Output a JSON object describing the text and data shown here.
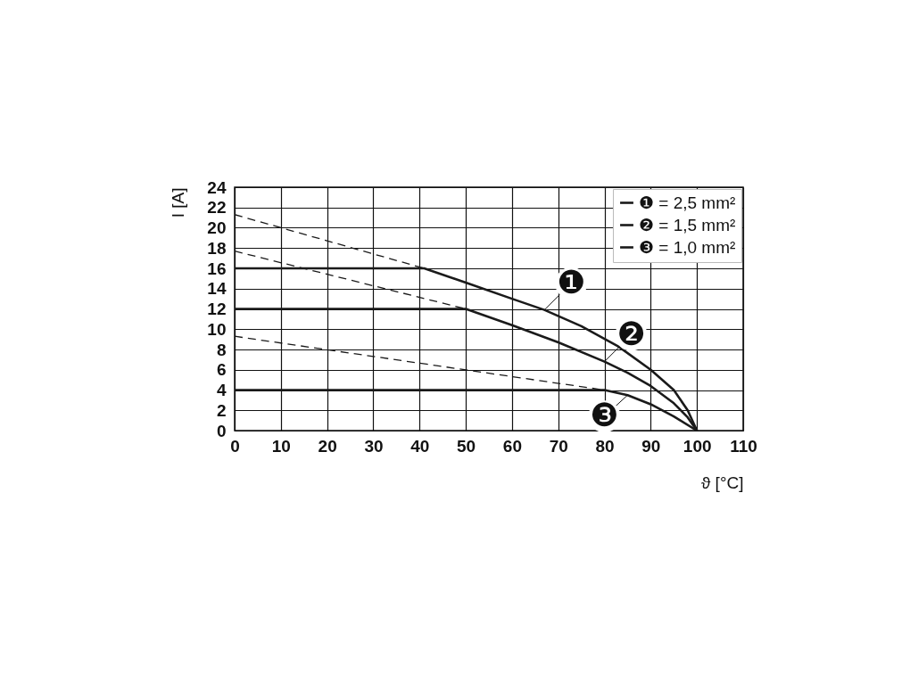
{
  "chart_data": {
    "type": "line",
    "xlabel": "ϑ [°C]",
    "ylabel": "I [A]",
    "xlim": [
      0,
      110
    ],
    "xticks": [
      0,
      10,
      20,
      30,
      40,
      50,
      60,
      70,
      80,
      90,
      100,
      110
    ],
    "ylim": [
      0,
      24
    ],
    "yticks": [
      0,
      2,
      4,
      6,
      8,
      10,
      12,
      14,
      16,
      18,
      20,
      22,
      24
    ],
    "grid": true,
    "legend": "top right",
    "marker": "none",
    "series": [
      {
        "name": "❶ = 2,5 mm²",
        "color": "#1a1a1a",
        "line_style": "solid",
        "x": [
          0,
          41,
          50,
          60,
          67,
          75,
          83,
          90,
          95,
          98,
          100
        ],
        "values": [
          16,
          16,
          14.6,
          13.0,
          11.9,
          10.3,
          8.3,
          6.0,
          4.0,
          2.0,
          0
        ]
      },
      {
        "name": "❷ = 1,5 mm²",
        "color": "#1a1a1a",
        "line_style": "solid",
        "x": [
          0,
          50,
          60,
          70,
          80,
          85,
          90,
          95,
          98,
          100
        ],
        "values": [
          12,
          12,
          10.4,
          8.7,
          6.8,
          5.7,
          4.4,
          2.7,
          1.3,
          0
        ]
      },
      {
        "name": "❸ = 1,0 mm²",
        "color": "#1a1a1a",
        "line_style": "solid",
        "x": [
          0,
          80,
          85,
          90,
          95,
          100
        ],
        "values": [
          4,
          4,
          3.5,
          2.6,
          1.4,
          0
        ]
      },
      {
        "color": "#1a1a1a",
        "line_style": "dashed",
        "x": [
          0,
          41
        ],
        "values": [
          21.3,
          16
        ]
      },
      {
        "color": "#1a1a1a",
        "line_style": "dashed",
        "x": [
          0,
          50
        ],
        "values": [
          17.7,
          12
        ]
      },
      {
        "color": "#1a1a1a",
        "line_style": "dashed",
        "x": [
          0,
          80
        ],
        "values": [
          9.3,
          4
        ]
      }
    ],
    "annotations": [
      {
        "text": "❶",
        "x": 67,
        "y": 11.9
      },
      {
        "text": "❷",
        "x": 80,
        "y": 6.8
      },
      {
        "text": "❸",
        "x": 85,
        "y": 3.5
      }
    ]
  }
}
